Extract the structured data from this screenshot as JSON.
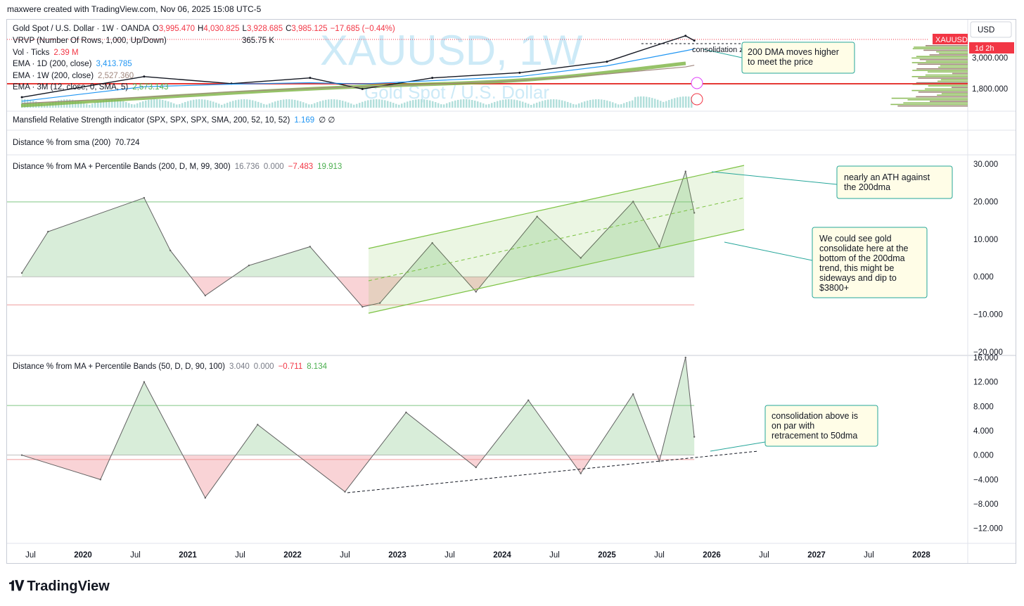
{
  "header": {
    "created_by": "maxwere created with TradingView.com, Nov 06, 2025 15:08 UTC-5"
  },
  "brand": {
    "name": "TradingView"
  },
  "price_pane": {
    "watermark_symbol": "XAUUSD, 1W",
    "watermark_name": "Gold Spot / U.S. Dollar",
    "legend": {
      "symbol": "Gold Spot / U.S. Dollar · 1W · OANDA",
      "o_label": "O",
      "o": "3,995.470",
      "h_label": "H",
      "h": "4,030.825",
      "l_label": "L",
      "l": "3,928.685",
      "c_label": "C",
      "c": "3,985.125",
      "chg": "−17.685 (−0.44%)",
      "vrvp": "VRVP (Number Of Rows, 1,000, Up/Down)",
      "vrvp_val": "365.75 K",
      "vol": "Vol · Ticks",
      "vol_val": "2.39 M",
      "ema1": "EMA · 1D (200, close)",
      "ema1_val": "3,413.785",
      "ema2": "EMA · 1W (200, close)",
      "ema2_val": "2,527.360",
      "ema3": "EMA · 3M (12, close, 0, SMA, 5)",
      "ema3_val": "2,573.143"
    },
    "currency": "USD",
    "symbol_badge": "XAUUSD",
    "timer_badge": "1d 2h",
    "axis_ticks": [
      "3,000.000",
      "1,800.000"
    ],
    "annotations": {
      "consolidation": "consolidation zone relative to trend",
      "dma_note": [
        "200 DMA moves higher",
        "to meet the price"
      ]
    }
  },
  "mansfield": {
    "label": "Mansfield Relative Strength indicator (SPX, SPX, SPX, SMA, 200, 52, 10, 52)",
    "value": "1.169",
    "icons": "∅  ∅"
  },
  "dist_sma": {
    "label": "Distance % from sma (200)",
    "value": "70.724"
  },
  "pane200": {
    "label": "Distance % from MA + Percentile Bands (200, D, M, 99, 300)",
    "v1": "16.736",
    "v2": "0.000",
    "v3": "−7.483",
    "v4": "19.913",
    "ticks": [
      "30.000",
      "20.000",
      "10.000",
      "0.000",
      "−10.000",
      "−20.000"
    ],
    "note_ath": [
      "nearly an ATH against",
      "the 200dma"
    ],
    "note_consol": [
      "We could see gold",
      "consolidate here at the",
      "bottom of the 200dma",
      "trend, this might be",
      "sideways and dip to",
      "$3800+"
    ]
  },
  "pane50": {
    "label": "Distance % from MA + Percentile Bands (50, D, D, 90, 100)",
    "v1": "3.040",
    "v2": "0.000",
    "v3": "−0.711",
    "v4": "8.134",
    "ticks": [
      "16.000",
      "12.000",
      "8.000",
      "4.000",
      "0.000",
      "−4.000",
      "−8.000",
      "−12.000"
    ],
    "note": [
      "consolidation above is",
      "on par with",
      "retracement to 50dma"
    ]
  },
  "x_axis": [
    "Jul",
    "2020",
    "Jul",
    "2021",
    "Jul",
    "2022",
    "Jul",
    "2023",
    "Jul",
    "2024",
    "Jul",
    "2025",
    "Jul",
    "2026",
    "Jul",
    "2027",
    "Jul",
    "2028"
  ],
  "colors": {
    "up": "#089981",
    "down": "#f23645",
    "green_fill": "#c8e6c9",
    "red_fill": "#f8c8cc",
    "channel": "#7cc243",
    "watermark": "#bfe3f5",
    "note_bg": "#fffde7",
    "note_border": "#26a69a"
  },
  "chart_data": [
    {
      "type": "line",
      "title": "Gold Spot / U.S. Dollar · 1W · OANDA",
      "series": [
        {
          "name": "XAUUSD",
          "x": [
            "2019-06",
            "2020-08",
            "2021-06",
            "2022-03",
            "2022-09",
            "2023-05",
            "2024-03",
            "2025-01",
            "2025-10",
            "2025-11"
          ],
          "values": [
            1400,
            2050,
            1800,
            2000,
            1630,
            2000,
            2200,
            2700,
            4350,
            3985
          ]
        },
        {
          "name": "EMA · 1D (200, close)",
          "values": [
            1300,
            1700,
            1780,
            1830,
            1790,
            1900,
            2050,
            2500,
            3300,
            3414
          ]
        },
        {
          "name": "EMA · 1W (200, close)",
          "values": [
            1250,
            1400,
            1550,
            1650,
            1700,
            1780,
            1900,
            2150,
            2450,
            2527
          ]
        }
      ],
      "y_ticks": [
        "1,800.000",
        "3,000.000"
      ]
    },
    {
      "type": "area",
      "title": "Distance % from MA + Percentile Bands (200, D, M, 99, 300)",
      "x": [
        "2019-06",
        "2019-09",
        "2020-08",
        "2020-11",
        "2021-03",
        "2021-08",
        "2022-03",
        "2022-09",
        "2022-11",
        "2023-05",
        "2023-10",
        "2024-05",
        "2024-10",
        "2025-04",
        "2025-07",
        "2025-10",
        "2025-11"
      ],
      "series": [
        {
          "name": "Distance %",
          "values": [
            1,
            12,
            21,
            7,
            -5,
            3,
            8,
            -8,
            -7,
            9,
            -4,
            16,
            5,
            20,
            8,
            28,
            17
          ]
        }
      ],
      "upper_band": 19.913,
      "lower_band": -7.483,
      "ylim": [
        -20,
        30
      ]
    },
    {
      "type": "area",
      "title": "Distance % from MA + Percentile Bands (50, D, D, 90, 100)",
      "x": [
        "2019-06",
        "2020-03",
        "2020-08",
        "2021-03",
        "2021-09",
        "2022-07",
        "2023-02",
        "2023-10",
        "2024-04",
        "2024-10",
        "2025-04",
        "2025-07",
        "2025-10",
        "2025-11"
      ],
      "series": [
        {
          "name": "Distance %",
          "values": [
            0,
            -4,
            12,
            -7,
            5,
            -6,
            7,
            -2,
            9,
            -3,
            10,
            -1,
            16,
            3
          ]
        }
      ],
      "upper_band": 8.134,
      "lower_band": -0.711,
      "ylim": [
        -14,
        16
      ]
    }
  ]
}
